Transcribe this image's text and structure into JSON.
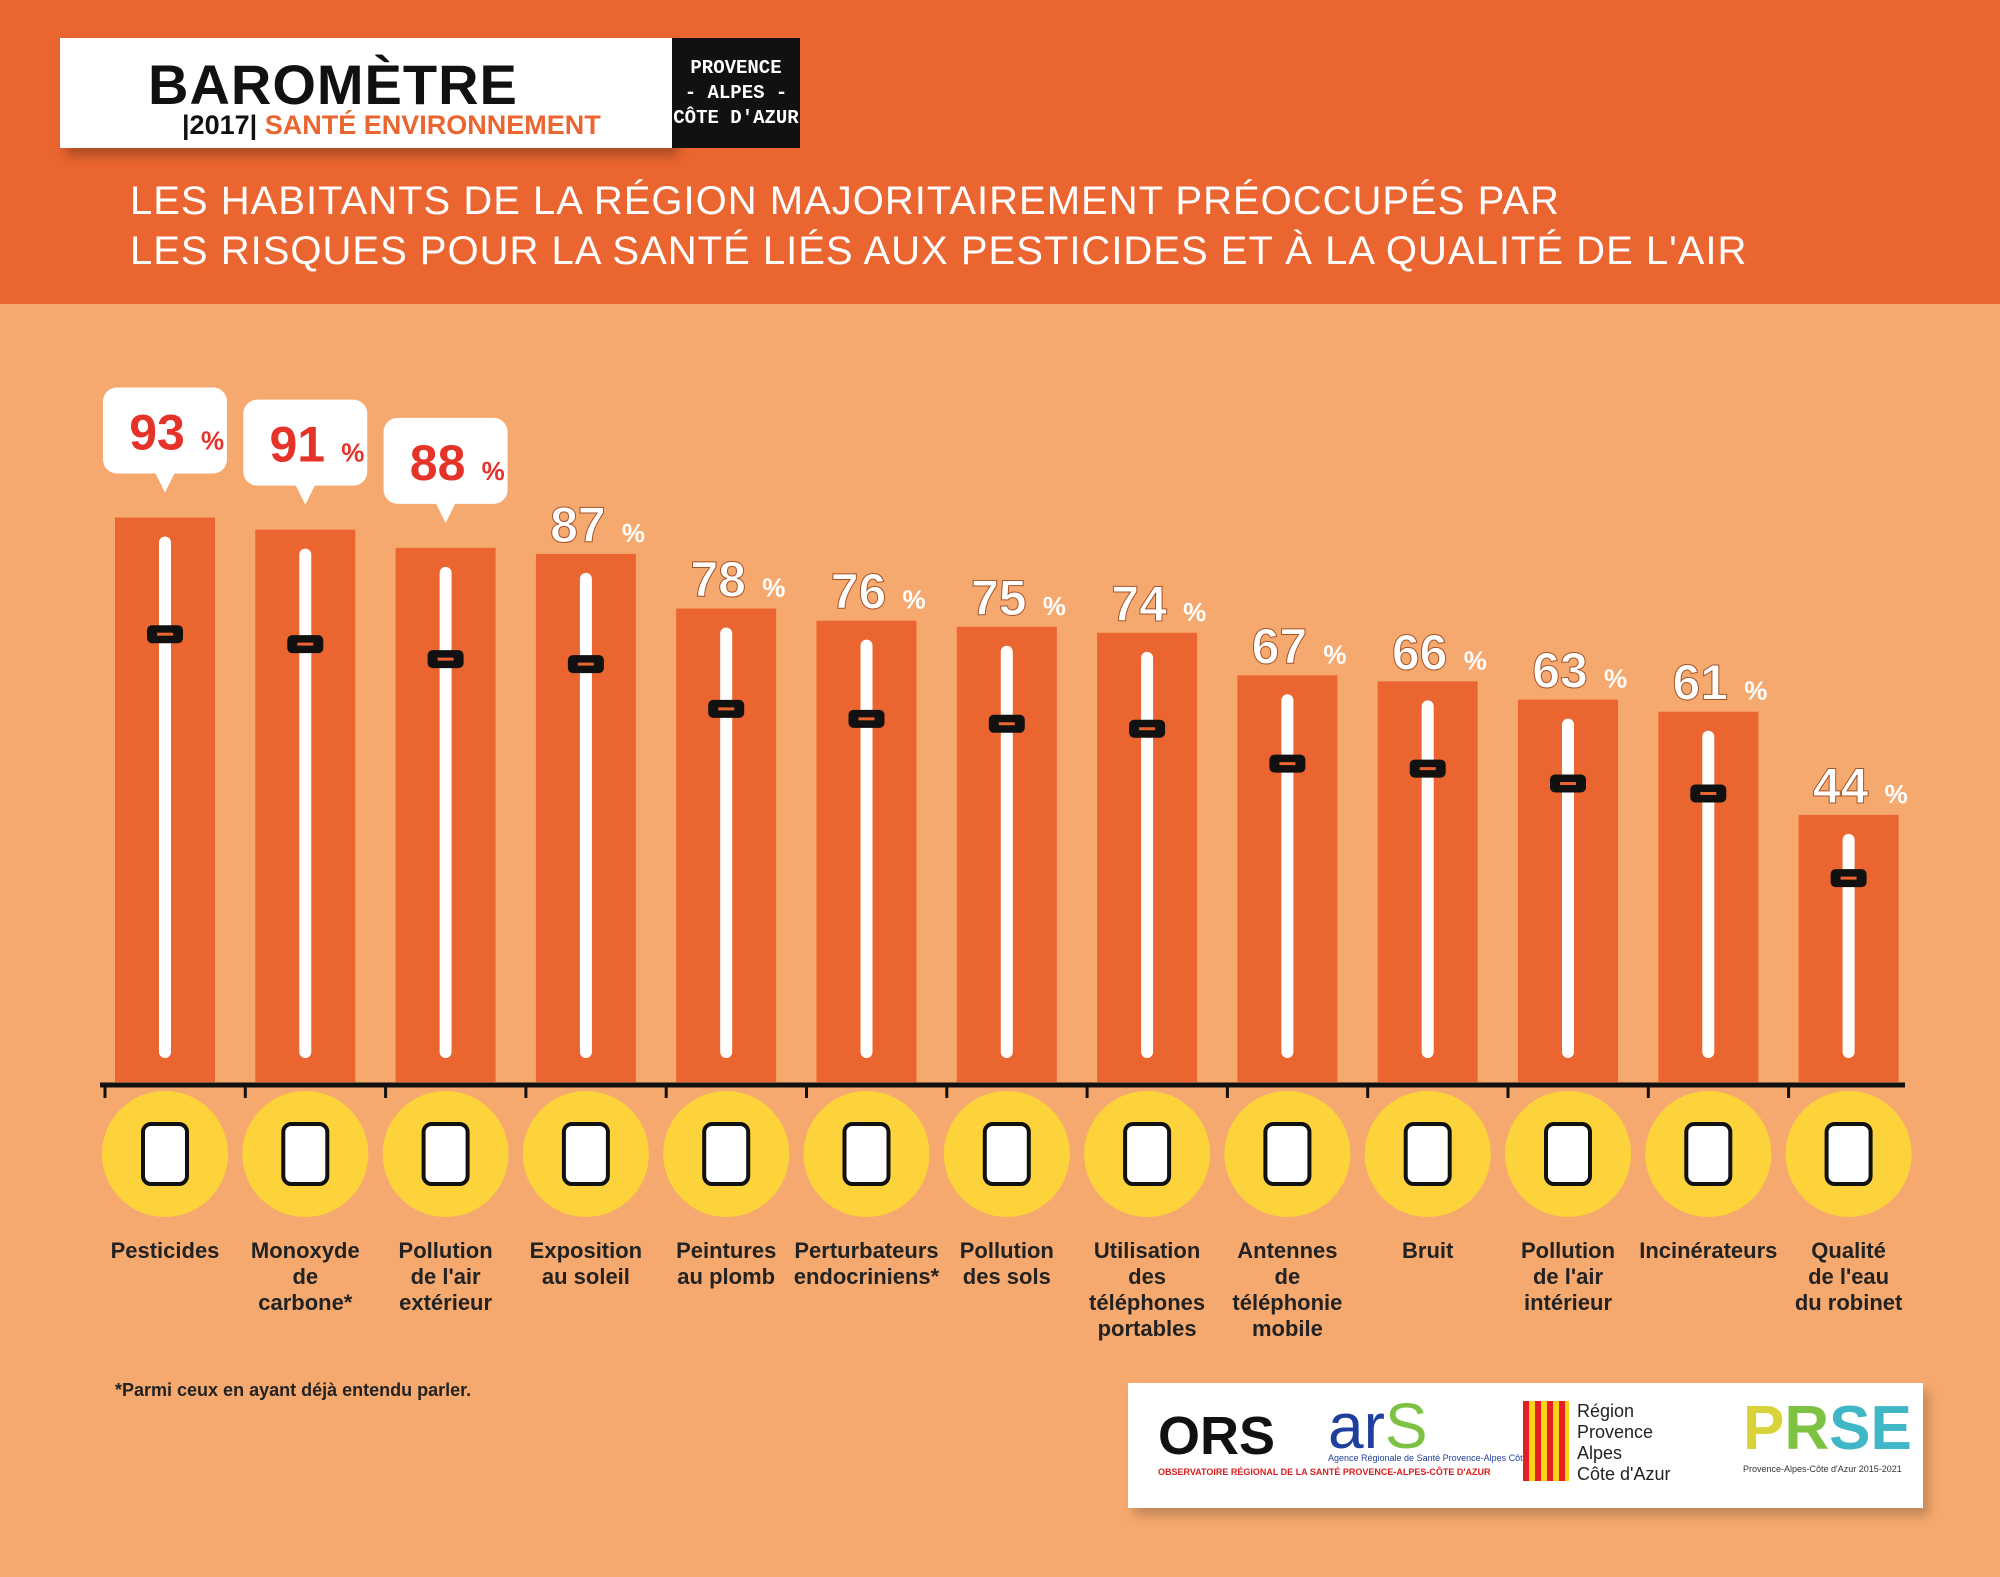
{
  "header": {
    "logo_title": "BAROMÈTRE",
    "logo_year": "|2017|",
    "logo_subtitle": "SANTÉ ENVIRONNEMENT",
    "region_badge": [
      "PROVENCE",
      "- ALPES -",
      "CÔTE D'AZUR"
    ],
    "title_line1": "LES HABITANTS DE LA RÉGION MAJORITAIREMENT PRÉOCCUPÉS PAR",
    "title_line2": "LES RISQUES POUR LA SANTÉ LIÉS AUX PESTICIDES ET À LA QUALITÉ DE L'AIR"
  },
  "chart_data": {
    "type": "bar",
    "unit": "%",
    "categories": [
      [
        "Pesticides"
      ],
      [
        "Monoxyde",
        "de",
        "carbone*"
      ],
      [
        "Pollution",
        "de l'air",
        "extérieur"
      ],
      [
        "Exposition",
        "au soleil"
      ],
      [
        "Peintures",
        "au plomb"
      ],
      [
        "Perturbateurs",
        "endocriniens*"
      ],
      [
        "Pollution",
        "des sols"
      ],
      [
        "Utilisation",
        "des",
        "téléphones",
        "portables"
      ],
      [
        "Antennes",
        "de",
        "téléphonie",
        "mobile"
      ],
      [
        "Bruit"
      ],
      [
        "Pollution",
        "de l'air",
        "intérieur"
      ],
      [
        "Incinérateurs"
      ],
      [
        "Qualité",
        "de l'eau",
        "du robinet"
      ]
    ],
    "values": [
      93,
      91,
      88,
      87,
      78,
      76,
      75,
      74,
      67,
      66,
      63,
      61,
      44
    ],
    "highlighted_top": 3,
    "icons": [
      "spray-bottle-icon",
      "warning-triangle-icon",
      "cloud-icon",
      "sun-icon",
      "paint-roller-icon",
      "bottle-cross-icon",
      "soil-sprout-icon",
      "smartphone-icon",
      "antenna-icon",
      "speaker-icon",
      "house-icon",
      "factory-icon",
      "faucet-icon"
    ],
    "ylim": [
      0,
      100
    ],
    "colors": {
      "bar": "#ea6530",
      "icon_circle": "#fdd33b",
      "value_highlight": "#e5332a"
    }
  },
  "footnote": "*Parmi ceux en ayant déjà entendu parler.",
  "partners": {
    "ors": "ORS",
    "ors_sub": "OBSERVATOIRE RÉGIONAL DE LA SANTÉ PROVENCE-ALPES-CÔTE D'AZUR",
    "ars": "ar",
    "ars_s": "S",
    "ars_sub": "Agence Régionale de Santé Provence-Alpes Côte d'Azur",
    "region": [
      "Région",
      "Provence",
      "Alpes",
      "Côte d'Azur"
    ],
    "prse_p": "P",
    "prse_r": "R",
    "prse_se": "SE",
    "prse_sub": "Provence-Alpes-Côte d'Azur 2015-2021"
  }
}
